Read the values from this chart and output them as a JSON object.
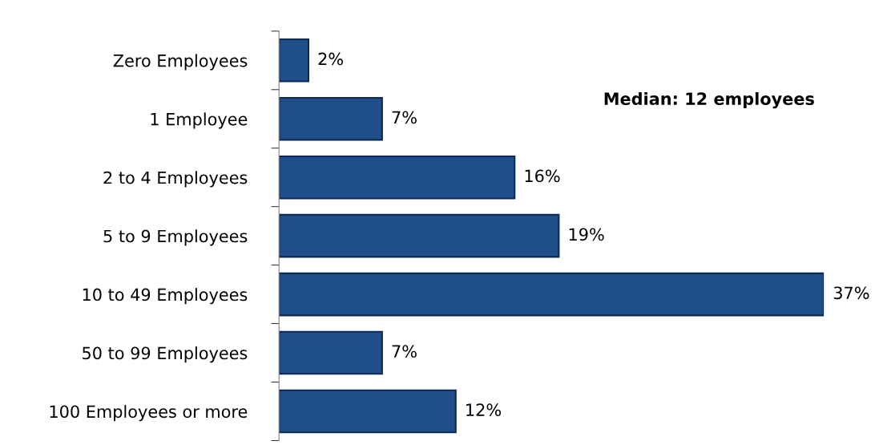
{
  "chart_data": {
    "type": "bar",
    "orientation": "horizontal",
    "categories": [
      "Zero Employees",
      "1 Employee",
      "2 to 4 Employees",
      "5 to 9 Employees",
      "10 to 49 Employees",
      "50 to 99 Employees",
      "100 Employees or more"
    ],
    "values": [
      2,
      7,
      16,
      19,
      37,
      7,
      12
    ],
    "value_labels": [
      "2%",
      "7%",
      "16%",
      "19%",
      "37%",
      "7%",
      "12%"
    ],
    "color": "#1f4e8a",
    "tick_labels": "y",
    "grid": false,
    "legend": false,
    "annotations": [
      "Median: 12 employees"
    ]
  }
}
